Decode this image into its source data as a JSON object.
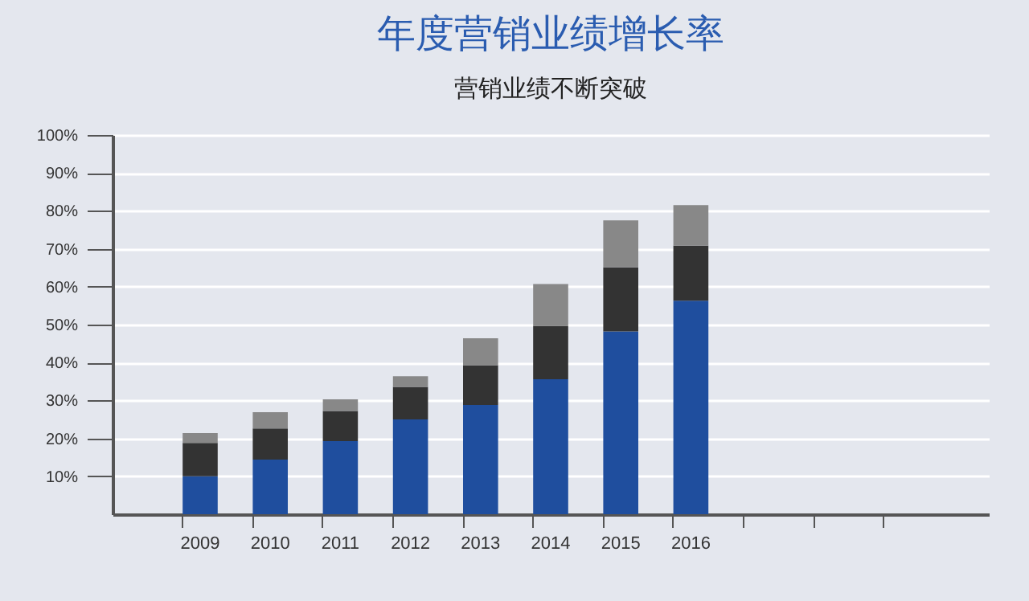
{
  "chart_data": {
    "type": "bar",
    "title": "年度营销业绩增长率",
    "subtitle": "营销业绩不断突破",
    "stacked": true,
    "categories": [
      "2009",
      "2010",
      "2011",
      "2012",
      "2013",
      "2014",
      "2015",
      "2016",
      null,
      null,
      null
    ],
    "series": [
      {
        "color": "#1f4e9e",
        "values": [
          10,
          14.4,
          19.3,
          25,
          28.8,
          35.6,
          48.2,
          56.3,
          null,
          null,
          null
        ]
      },
      {
        "color": "#333333",
        "values": [
          8.8,
          8.2,
          7.9,
          8.6,
          10.5,
          14.1,
          16.9,
          14.5,
          null,
          null,
          null
        ]
      },
      {
        "color": "#888888",
        "values": [
          2.6,
          4.3,
          3.1,
          2.8,
          7.1,
          11,
          12.4,
          10.7,
          null,
          null,
          null
        ]
      }
    ],
    "ylim": [
      0,
      100
    ],
    "yticks": [
      {
        "value": 10,
        "label": "10%"
      },
      {
        "value": 20,
        "label": "20%"
      },
      {
        "value": 30,
        "label": "30%"
      },
      {
        "value": 40,
        "label": "40%"
      },
      {
        "value": 50,
        "label": "50%"
      },
      {
        "value": 60,
        "label": "60%"
      },
      {
        "value": 70,
        "label": "70%"
      },
      {
        "value": 80,
        "label": "80%"
      },
      {
        "value": 90,
        "label": "90%"
      },
      {
        "value": 100,
        "label": "100%"
      }
    ],
    "grid": "y",
    "legend": false
  }
}
